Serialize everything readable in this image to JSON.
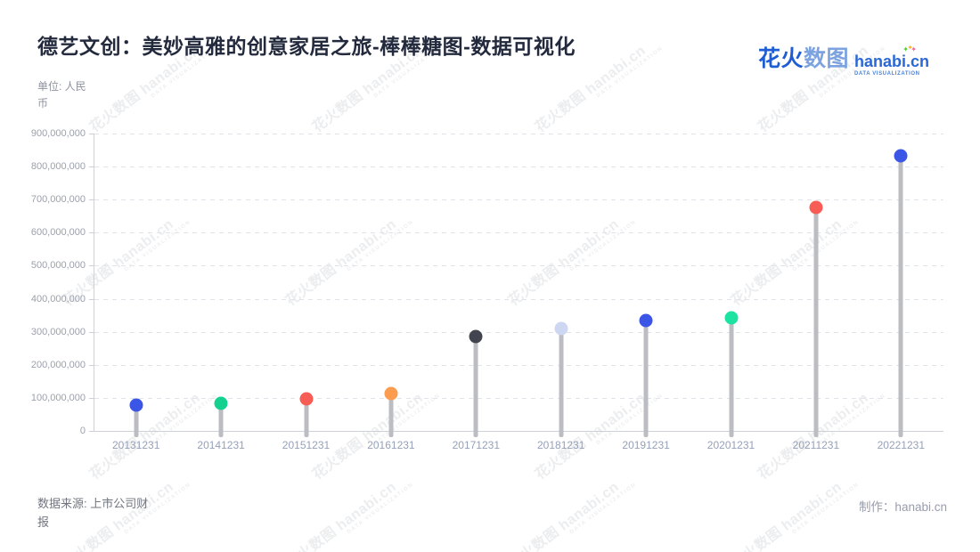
{
  "header": {
    "title": "德艺文创：美妙高雅的创意家居之旅-棒棒糖图-数据可视化",
    "unit_label": "单位: 人民币",
    "logo": {
      "brand_cn_primary": "花火",
      "brand_cn_secondary": "数图",
      "brand_en": "hanabi.cn",
      "brand_sub": "DATA VISUALIZATION"
    }
  },
  "footer": {
    "source_label": "数据来源: 上市公司财报",
    "credit_label": "制作：hanabi.cn"
  },
  "watermark": {
    "text": "花火数图 hanabi.cn",
    "subtext": "DATA VISUALIZATION"
  },
  "colors": {
    "blue": "#3b55e6",
    "green": "#15d08e",
    "bright_green": "#1de3a2",
    "red": "#f75c55",
    "orange": "#fb9c4f",
    "dark": "#42454f",
    "pale_blue": "#cdd7f1",
    "stem_gray": "#bcbdc2",
    "axis_gray": "#cdd0d6",
    "grid_gray": "#e2e3e8"
  },
  "chart_data": {
    "type": "lollipop",
    "title": "德艺文创：美妙高雅的创意家居之旅-棒棒糖图-数据可视化",
    "xlabel": "",
    "ylabel": "单位: 人民币",
    "categories": [
      "20131231",
      "20141231",
      "20151231",
      "20161231",
      "20171231",
      "20181231",
      "20191231",
      "20201231",
      "20211231",
      "20221231"
    ],
    "values": [
      78000000,
      84000000,
      98000000,
      114000000,
      285000000,
      309000000,
      333000000,
      341000000,
      676000000,
      833000000
    ],
    "point_colors": [
      "#3b55e6",
      "#15d08e",
      "#f75c55",
      "#fb9c4f",
      "#42454f",
      "#cdd7f1",
      "#3b55e6",
      "#1de3a2",
      "#f75c55",
      "#3b55e6"
    ],
    "ylim": [
      0,
      900000000
    ],
    "ytick_step": 100000000,
    "ytick_labels": [
      "0",
      "100,000,000",
      "200,000,000",
      "300,000,000",
      "400,000,000",
      "500,000,000",
      "600,000,000",
      "700,000,000",
      "800,000,000",
      "900,000,000"
    ],
    "grid": "dashed-horizontal",
    "legend": "none"
  }
}
